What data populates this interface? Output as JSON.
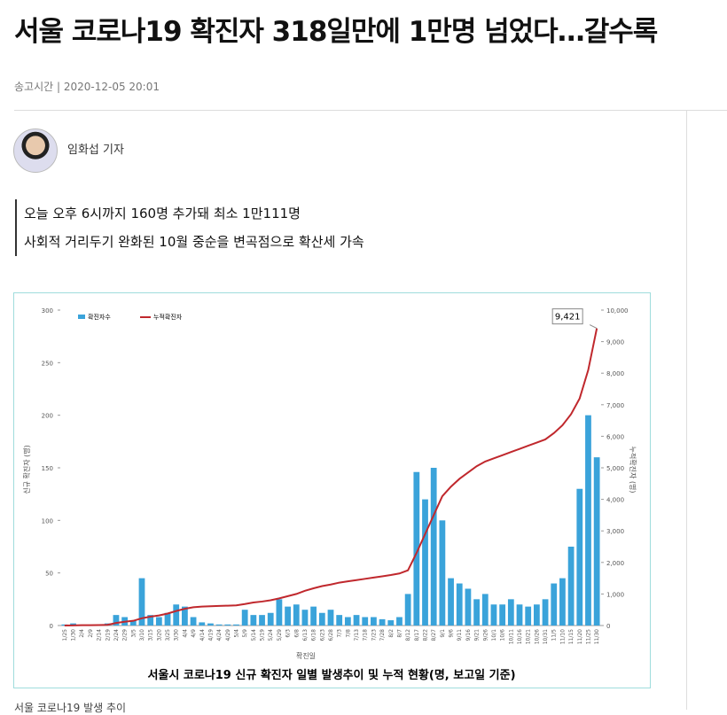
{
  "article": {
    "title": "서울 코로나19 확진자 318일만에 1만명 넘었다…갈수록",
    "time_label": "송고시간",
    "time": "2020-12-05 20:01",
    "author": "임화섭 기자",
    "summary": [
      "오늘 오후 6시까지 160명 추가돼 최소 1만111명",
      "사회적 거리두기 완화된 10월 중순을 변곡점으로 확산세 가속"
    ],
    "caption_below": "서울 코로나19 발생 추이"
  },
  "chart_data": {
    "type": "bar-line",
    "title": "서울시 코로나19 신규 확진자 일별 발생추이 및 누적 현황(명, 보고일 기준)",
    "x_label": "확진일",
    "y_label": "신규 확진자 (명)",
    "y2_label": "누적확진자 (명)",
    "categories": [
      "1/25",
      "1/30",
      "2/4",
      "2/9",
      "2/14",
      "2/19",
      "2/24",
      "2/29",
      "3/5",
      "3/10",
      "3/15",
      "3/20",
      "3/25",
      "3/30",
      "4/4",
      "4/9",
      "4/14",
      "4/19",
      "4/24",
      "4/29",
      "5/4",
      "5/9",
      "5/14",
      "5/19",
      "5/24",
      "5/29",
      "6/3",
      "6/8",
      "6/13",
      "6/18",
      "6/23",
      "6/28",
      "7/3",
      "7/8",
      "7/13",
      "7/18",
      "7/23",
      "7/28",
      "8/2",
      "8/7",
      "8/12",
      "8/17",
      "8/22",
      "8/27",
      "9/1",
      "9/6",
      "9/11",
      "9/16",
      "9/21",
      "9/26",
      "10/1",
      "10/6",
      "10/11",
      "10/16",
      "10/21",
      "10/26",
      "10/31",
      "11/5",
      "11/10",
      "11/15",
      "11/20",
      "11/25",
      "11/30"
    ],
    "series": [
      {
        "name": "확진자수",
        "color": "#3aa3da",
        "values": [
          1,
          2,
          0,
          0,
          0,
          2,
          10,
          8,
          5,
          45,
          10,
          8,
          12,
          20,
          18,
          8,
          3,
          2,
          1,
          1,
          1,
          15,
          10,
          10,
          12,
          25,
          18,
          20,
          15,
          18,
          12,
          15,
          10,
          8,
          10,
          8,
          8,
          6,
          5,
          8,
          30,
          146,
          120,
          150,
          100,
          45,
          40,
          35,
          25,
          30,
          20,
          20,
          25,
          20,
          18,
          20,
          25,
          40,
          45,
          75,
          130,
          200,
          160
        ]
      },
      {
        "name": "누적확진자",
        "color": "#c0282d",
        "axis": "y2",
        "values": [
          0,
          5,
          10,
          10,
          15,
          20,
          80,
          120,
          150,
          230,
          280,
          320,
          380,
          460,
          530,
          580,
          600,
          610,
          620,
          630,
          640,
          680,
          730,
          760,
          800,
          860,
          930,
          1000,
          1100,
          1180,
          1250,
          1300,
          1360,
          1400,
          1440,
          1480,
          1520,
          1560,
          1600,
          1650,
          1750,
          2300,
          2900,
          3500,
          4100,
          4400,
          4650,
          4850,
          5050,
          5200,
          5300,
          5400,
          5500,
          5600,
          5700,
          5800,
          5900,
          6100,
          6350,
          6700,
          7200,
          8100,
          9421
        ],
        "value_labels": [
          null,
          null,
          null,
          null,
          null,
          null,
          null,
          null,
          null,
          null,
          null,
          null,
          null,
          null,
          null,
          null,
          null,
          null,
          null,
          null,
          null,
          null,
          null,
          null,
          null,
          null,
          null,
          null,
          null,
          null,
          null,
          null,
          null,
          null,
          null,
          null,
          null,
          null,
          null,
          null,
          null,
          null,
          null,
          null,
          null,
          null,
          null,
          null,
          null,
          null,
          null,
          null,
          null,
          null,
          null,
          null,
          null,
          null,
          null,
          null,
          null,
          null,
          "9,421"
        ]
      }
    ],
    "ylim": [
      0,
      300
    ],
    "yticks": [
      0,
      50,
      100,
      150,
      200,
      250,
      300
    ],
    "y2lim": [
      0,
      10000
    ],
    "y2ticks": [
      0,
      {
        "value": 1000,
        "label": "1,000"
      },
      {
        "value": 2000,
        "label": "2,000"
      },
      {
        "value": 3000,
        "label": "3,000"
      },
      {
        "value": 4000,
        "label": "4,000"
      },
      {
        "value": 5000,
        "label": "5,000"
      },
      {
        "value": 6000,
        "label": "6,000"
      },
      {
        "value": 7000,
        "label": "7,000"
      },
      {
        "value": 8000,
        "label": "8,000"
      },
      {
        "value": 9000,
        "label": "9,000"
      },
      {
        "value": 10000,
        "label": "10,000"
      }
    ],
    "legend": "top-left"
  }
}
